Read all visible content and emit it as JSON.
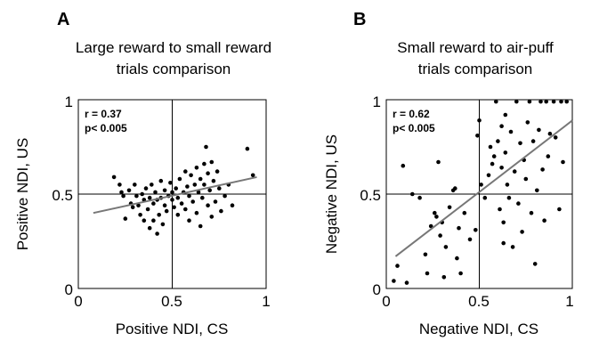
{
  "chart_data": [
    {
      "type": "scatter",
      "panel_label": "A",
      "title_lines": [
        "Large reward to small reward",
        "trials comparison"
      ],
      "xlabel": "Positive NDI, CS",
      "ylabel": "Positive NDI, US",
      "xlim": [
        0,
        1
      ],
      "ylim": [
        0,
        1
      ],
      "x_ticks": [
        "0",
        "0.5",
        "1"
      ],
      "y_ticks": [
        "0",
        "0.5",
        "1"
      ],
      "reference_lines": {
        "x": 0.5,
        "y": 0.5
      },
      "stats": [
        "r = 0.37",
        "p< 0.005"
      ],
      "fit_line": {
        "x": [
          0.08,
          0.95
        ],
        "y": [
          0.4,
          0.59
        ]
      },
      "points": [
        [
          0.19,
          0.59
        ],
        [
          0.22,
          0.55
        ],
        [
          0.23,
          0.51
        ],
        [
          0.24,
          0.49
        ],
        [
          0.25,
          0.37
        ],
        [
          0.27,
          0.52
        ],
        [
          0.28,
          0.45
        ],
        [
          0.29,
          0.43
        ],
        [
          0.3,
          0.55
        ],
        [
          0.31,
          0.49
        ],
        [
          0.32,
          0.44
        ],
        [
          0.33,
          0.39
        ],
        [
          0.34,
          0.5
        ],
        [
          0.35,
          0.36
        ],
        [
          0.35,
          0.47
        ],
        [
          0.36,
          0.53
        ],
        [
          0.37,
          0.42
        ],
        [
          0.38,
          0.32
        ],
        [
          0.38,
          0.48
        ],
        [
          0.39,
          0.55
        ],
        [
          0.4,
          0.36
        ],
        [
          0.4,
          0.45
        ],
        [
          0.41,
          0.51
        ],
        [
          0.42,
          0.29
        ],
        [
          0.42,
          0.47
        ],
        [
          0.43,
          0.39
        ],
        [
          0.44,
          0.57
        ],
        [
          0.44,
          0.48
        ],
        [
          0.45,
          0.34
        ],
        [
          0.46,
          0.44
        ],
        [
          0.46,
          0.52
        ],
        [
          0.47,
          0.41
        ],
        [
          0.48,
          0.49
        ],
        [
          0.49,
          0.56
        ],
        [
          0.5,
          0.47
        ],
        [
          0.5,
          0.51
        ],
        [
          0.51,
          0.43
        ],
        [
          0.52,
          0.53
        ],
        [
          0.53,
          0.39
        ],
        [
          0.53,
          0.48
        ],
        [
          0.54,
          0.58
        ],
        [
          0.55,
          0.45
        ],
        [
          0.56,
          0.51
        ],
        [
          0.57,
          0.42
        ],
        [
          0.57,
          0.62
        ],
        [
          0.58,
          0.54
        ],
        [
          0.59,
          0.36
        ],
        [
          0.59,
          0.49
        ],
        [
          0.6,
          0.6
        ],
        [
          0.61,
          0.46
        ],
        [
          0.62,
          0.55
        ],
        [
          0.63,
          0.4
        ],
        [
          0.63,
          0.64
        ],
        [
          0.64,
          0.51
        ],
        [
          0.65,
          0.33
        ],
        [
          0.65,
          0.58
        ],
        [
          0.66,
          0.48
        ],
        [
          0.67,
          0.66
        ],
        [
          0.67,
          0.55
        ],
        [
          0.68,
          0.75
        ],
        [
          0.69,
          0.44
        ],
        [
          0.69,
          0.61
        ],
        [
          0.7,
          0.52
        ],
        [
          0.71,
          0.38
        ],
        [
          0.71,
          0.67
        ],
        [
          0.72,
          0.57
        ],
        [
          0.73,
          0.46
        ],
        [
          0.74,
          0.62
        ],
        [
          0.75,
          0.53
        ],
        [
          0.76,
          0.41
        ],
        [
          0.78,
          0.49
        ],
        [
          0.8,
          0.55
        ],
        [
          0.82,
          0.44
        ],
        [
          0.9,
          0.74
        ],
        [
          0.93,
          0.6
        ]
      ]
    },
    {
      "type": "scatter",
      "panel_label": "B",
      "title_lines": [
        "Small reward to air-puff",
        "trials comparison"
      ],
      "xlabel": "Negative NDI, CS",
      "ylabel": "Negative NDI, US",
      "xlim": [
        0,
        1
      ],
      "ylim": [
        0,
        1
      ],
      "x_ticks": [
        "0",
        "0.5",
        "1"
      ],
      "y_ticks": [
        "0",
        "0.5",
        "1"
      ],
      "reference_lines": {
        "x": 0.5,
        "y": 0.5
      },
      "stats": [
        "r = 0.62",
        "p< 0.005"
      ],
      "fit_line": {
        "x": [
          0.05,
          1.0
        ],
        "y": [
          0.17,
          0.89
        ]
      },
      "points": [
        [
          0.04,
          0.04
        ],
        [
          0.06,
          0.12
        ],
        [
          0.09,
          0.65
        ],
        [
          0.11,
          0.03
        ],
        [
          0.14,
          0.5
        ],
        [
          0.18,
          0.48
        ],
        [
          0.21,
          0.18
        ],
        [
          0.22,
          0.08
        ],
        [
          0.24,
          0.33
        ],
        [
          0.26,
          0.4
        ],
        [
          0.27,
          0.38
        ],
        [
          0.28,
          0.67
        ],
        [
          0.29,
          0.28
        ],
        [
          0.3,
          0.35
        ],
        [
          0.31,
          0.06
        ],
        [
          0.32,
          0.22
        ],
        [
          0.34,
          0.43
        ],
        [
          0.36,
          0.52
        ],
        [
          0.37,
          0.53
        ],
        [
          0.38,
          0.16
        ],
        [
          0.39,
          0.32
        ],
        [
          0.4,
          0.08
        ],
        [
          0.42,
          0.4
        ],
        [
          0.45,
          0.26
        ],
        [
          0.48,
          0.31
        ],
        [
          0.49,
          0.81
        ],
        [
          0.5,
          0.89
        ],
        [
          0.51,
          0.55
        ],
        [
          0.53,
          0.48
        ],
        [
          0.55,
          0.6
        ],
        [
          0.56,
          0.75
        ],
        [
          0.57,
          0.66
        ],
        [
          0.58,
          0.7
        ],
        [
          0.59,
          0.99
        ],
        [
          0.6,
          0.78
        ],
        [
          0.61,
          0.42
        ],
        [
          0.62,
          0.64
        ],
        [
          0.62,
          0.86
        ],
        [
          0.63,
          0.35
        ],
        [
          0.63,
          0.24
        ],
        [
          0.64,
          0.72
        ],
        [
          0.64,
          0.92
        ],
        [
          0.65,
          0.55
        ],
        [
          0.66,
          0.48
        ],
        [
          0.67,
          0.83
        ],
        [
          0.68,
          0.22
        ],
        [
          0.69,
          0.62
        ],
        [
          0.7,
          0.99
        ],
        [
          0.71,
          0.45
        ],
        [
          0.72,
          0.77
        ],
        [
          0.73,
          0.3
        ],
        [
          0.74,
          0.68
        ],
        [
          0.75,
          0.58
        ],
        [
          0.76,
          0.88
        ],
        [
          0.77,
          0.99
        ],
        [
          0.78,
          0.4
        ],
        [
          0.79,
          0.78
        ],
        [
          0.8,
          0.13
        ],
        [
          0.81,
          0.52
        ],
        [
          0.82,
          0.84
        ],
        [
          0.83,
          0.99
        ],
        [
          0.84,
          0.63
        ],
        [
          0.85,
          0.36
        ],
        [
          0.86,
          0.99
        ],
        [
          0.87,
          0.7
        ],
        [
          0.88,
          0.82
        ],
        [
          0.9,
          0.99
        ],
        [
          0.91,
          0.8
        ],
        [
          0.93,
          0.42
        ],
        [
          0.94,
          0.99
        ],
        [
          0.95,
          0.67
        ],
        [
          0.97,
          0.99
        ]
      ]
    }
  ]
}
